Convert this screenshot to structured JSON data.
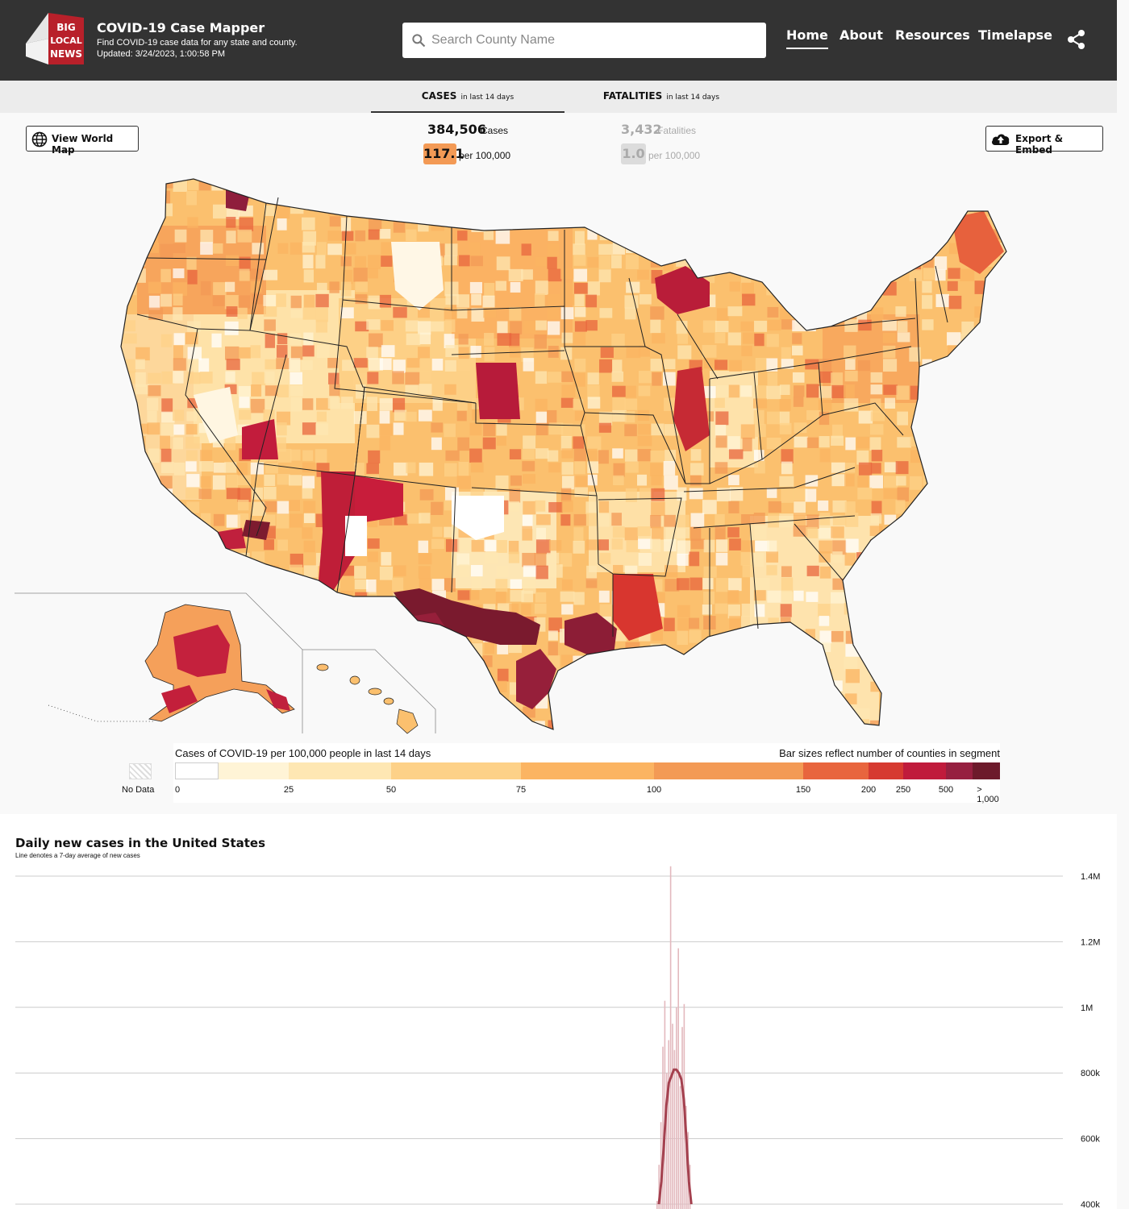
{
  "header": {
    "logo_text": [
      "BIG",
      "LOCAL",
      "NEWS"
    ],
    "title": "COVID-19 Case Mapper",
    "subtitle": "Find COVID-19 case data for any state and county.",
    "updated": "Updated: 3/24/2023, 1:00:58 PM",
    "search_placeholder": "Search County Name",
    "nav": [
      {
        "label": "Home",
        "active": true
      },
      {
        "label": "About",
        "active": false
      },
      {
        "label": "Resources",
        "active": false
      },
      {
        "label": "Timelapse",
        "active": false
      }
    ]
  },
  "tabs": [
    {
      "label": "CASES",
      "suffix": "in last 14 days",
      "active": true
    },
    {
      "label": "FATALITIES",
      "suffix": "in last 14 days",
      "active": false
    }
  ],
  "buttons": {
    "world_map": "View World Map",
    "export": "Export & Embed"
  },
  "stats": {
    "cases": {
      "value": "384,506",
      "label": "Cases",
      "rate": "117.1",
      "rate_label": "per 100,000"
    },
    "fatalities": {
      "value": "3,432",
      "label": "Fatalities",
      "rate": "1.0",
      "rate_label": "per 100,000"
    }
  },
  "legend": {
    "title": "Cases of COVID-19 per 100,000 people in last 14 days",
    "note": "Bar sizes reflect number of counties in segment",
    "no_data": "No Data",
    "ticks": [
      "0",
      "25",
      "50",
      "75",
      "100",
      "150",
      "200",
      "250",
      "500",
      "> 1,000"
    ],
    "colors": [
      "#ffffff",
      "#fff4d6",
      "#fee7b3",
      "#fdd188",
      "#fbb462",
      "#f39a55",
      "#e8653e",
      "#d63a31",
      "#c01b3c",
      "#962040",
      "#6d1a2b"
    ]
  },
  "chart": {
    "title": "Daily new cases in the United States",
    "subtitle": "Line denotes a 7-day average of new cases",
    "bar_color": "#e3b9be",
    "line_color": "#a4414f"
  },
  "chart_data": {
    "type": "bar",
    "y_tick_labels": [
      "1.4M",
      "1.2M",
      "1M",
      "800k",
      "600k",
      "400k"
    ],
    "y_ticks": [
      1400000,
      1200000,
      1000000,
      800000,
      600000,
      400000
    ],
    "ylim": [
      400000,
      1430000
    ],
    "spike_daily_peaks": [
      410000,
      520000,
      650000,
      880000,
      1020000,
      800000,
      900000,
      1430000,
      950000,
      870000,
      1000000,
      1180000,
      760000,
      940000,
      1010000,
      700000,
      620000,
      520000
    ],
    "spike_avg_line": [
      400000,
      470000,
      580000,
      700000,
      770000,
      790000,
      810000,
      810000,
      800000,
      780000,
      720000,
      600000,
      470000,
      400000
    ]
  }
}
